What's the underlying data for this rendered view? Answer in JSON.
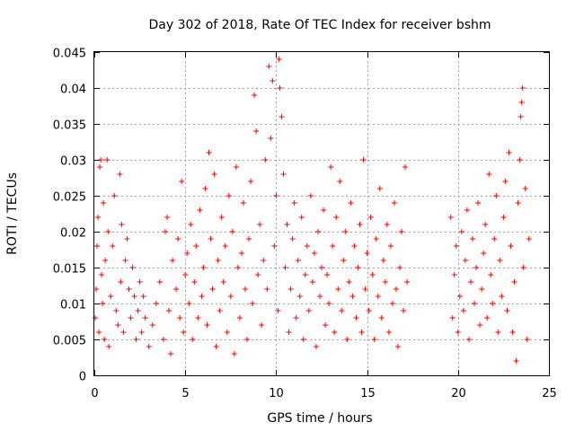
{
  "chart_data": {
    "type": "scatter",
    "title": "Day 302 of 2018, Rate Of TEC Index for receiver bshm",
    "xlabel": "GPS time / hours",
    "ylabel": "ROTI / TECUs",
    "xlim": [
      0,
      25
    ],
    "ylim": [
      0,
      0.045
    ],
    "x_ticks": [
      0,
      5,
      10,
      15,
      20,
      25
    ],
    "x_tick_labels": [
      "0",
      "5",
      "10",
      "15",
      "20",
      "25"
    ],
    "y_ticks": [
      0,
      0.005,
      0.01,
      0.015,
      0.02,
      0.025,
      0.03,
      0.035,
      0.04,
      0.045
    ],
    "y_tick_labels": [
      "0",
      "0.005",
      "0.01",
      "0.015",
      "0.02",
      "0.025",
      "0.03",
      "0.035",
      "0.04",
      "0.045"
    ],
    "grid": true,
    "marker": "+",
    "color": "#ff0000",
    "series": [
      {
        "name": "ROTI",
        "points": [
          [
            0.05,
            0.008
          ],
          [
            0.1,
            0.012
          ],
          [
            0.15,
            0.018
          ],
          [
            0.2,
            0.022
          ],
          [
            0.25,
            0.006
          ],
          [
            0.3,
            0.029
          ],
          [
            0.35,
            0.03
          ],
          [
            0.4,
            0.014
          ],
          [
            0.45,
            0.01
          ],
          [
            0.5,
            0.024
          ],
          [
            0.55,
            0.005
          ],
          [
            0.6,
            0.016
          ],
          [
            0.7,
            0.03
          ],
          [
            0.75,
            0.02
          ],
          [
            0.8,
            0.004
          ],
          [
            0.9,
            0.011
          ],
          [
            1.0,
            0.018
          ],
          [
            1.1,
            0.025
          ],
          [
            1.2,
            0.009
          ],
          [
            1.3,
            0.007
          ],
          [
            1.4,
            0.028
          ],
          [
            1.45,
            0.013
          ],
          [
            1.5,
            0.021
          ],
          [
            1.6,
            0.006
          ],
          [
            1.7,
            0.016
          ],
          [
            1.8,
            0.019
          ],
          [
            1.9,
            0.012
          ],
          [
            2.0,
            0.008
          ],
          [
            2.1,
            0.015
          ],
          [
            2.2,
            0.011
          ],
          [
            2.3,
            0.005
          ],
          [
            2.4,
            0.009
          ],
          [
            2.5,
            0.013
          ],
          [
            2.6,
            0.006
          ],
          [
            2.7,
            0.011
          ],
          [
            2.8,
            0.008
          ],
          [
            3.0,
            0.004
          ],
          [
            3.2,
            0.007
          ],
          [
            3.4,
            0.01
          ],
          [
            3.6,
            0.013
          ],
          [
            3.8,
            0.005
          ],
          [
            3.9,
            0.02
          ],
          [
            4.0,
            0.022
          ],
          [
            4.1,
            0.009
          ],
          [
            4.2,
            0.003
          ],
          [
            4.3,
            0.016
          ],
          [
            4.5,
            0.012
          ],
          [
            4.6,
            0.019
          ],
          [
            4.7,
            0.008
          ],
          [
            4.8,
            0.027
          ],
          [
            4.9,
            0.006
          ],
          [
            5.0,
            0.014
          ],
          [
            5.1,
            0.017
          ],
          [
            5.2,
            0.01
          ],
          [
            5.3,
            0.021
          ],
          [
            5.4,
            0.005
          ],
          [
            5.5,
            0.013
          ],
          [
            5.6,
            0.018
          ],
          [
            5.7,
            0.008
          ],
          [
            5.8,
            0.023
          ],
          [
            5.9,
            0.011
          ],
          [
            6.0,
            0.015
          ],
          [
            6.1,
            0.026
          ],
          [
            6.2,
            0.007
          ],
          [
            6.3,
            0.031
          ],
          [
            6.4,
            0.019
          ],
          [
            6.5,
            0.012
          ],
          [
            6.6,
            0.028
          ],
          [
            6.7,
            0.004
          ],
          [
            6.8,
            0.016
          ],
          [
            6.9,
            0.009
          ],
          [
            7.0,
            0.022
          ],
          [
            7.1,
            0.013
          ],
          [
            7.2,
            0.018
          ],
          [
            7.3,
            0.006
          ],
          [
            7.4,
            0.025
          ],
          [
            7.5,
            0.011
          ],
          [
            7.6,
            0.02
          ],
          [
            7.7,
            0.003
          ],
          [
            7.8,
            0.029
          ],
          [
            7.9,
            0.015
          ],
          [
            8.0,
            0.008
          ],
          [
            8.1,
            0.017
          ],
          [
            8.2,
            0.024
          ],
          [
            8.3,
            0.012
          ],
          [
            8.4,
            0.005
          ],
          [
            8.5,
            0.019
          ],
          [
            8.6,
            0.027
          ],
          [
            8.7,
            0.01
          ],
          [
            8.8,
            0.039
          ],
          [
            8.9,
            0.034
          ],
          [
            9.0,
            0.014
          ],
          [
            9.1,
            0.021
          ],
          [
            9.2,
            0.007
          ],
          [
            9.3,
            0.016
          ],
          [
            9.4,
            0.03
          ],
          [
            9.5,
            0.012
          ],
          [
            9.6,
            0.043
          ],
          [
            9.7,
            0.033
          ],
          [
            9.8,
            0.041
          ],
          [
            9.9,
            0.018
          ],
          [
            10.0,
            0.025
          ],
          [
            10.1,
            0.009
          ],
          [
            10.15,
            0.044
          ],
          [
            10.2,
            0.04
          ],
          [
            10.3,
            0.036
          ],
          [
            10.4,
            0.028
          ],
          [
            10.5,
            0.015
          ],
          [
            10.6,
            0.021
          ],
          [
            10.7,
            0.006
          ],
          [
            10.8,
            0.012
          ],
          [
            10.9,
            0.019
          ],
          [
            11.0,
            0.024
          ],
          [
            11.1,
            0.008
          ],
          [
            11.2,
            0.016
          ],
          [
            11.3,
            0.011
          ],
          [
            11.4,
            0.022
          ],
          [
            11.5,
            0.005
          ],
          [
            11.6,
            0.014
          ],
          [
            11.7,
            0.018
          ],
          [
            11.8,
            0.009
          ],
          [
            11.9,
            0.025
          ],
          [
            12.0,
            0.013
          ],
          [
            12.1,
            0.017
          ],
          [
            12.2,
            0.004
          ],
          [
            12.3,
            0.02
          ],
          [
            12.4,
            0.011
          ],
          [
            12.5,
            0.015
          ],
          [
            12.6,
            0.023
          ],
          [
            12.7,
            0.007
          ],
          [
            12.8,
            0.014
          ],
          [
            12.9,
            0.01
          ],
          [
            13.0,
            0.029
          ],
          [
            13.1,
            0.018
          ],
          [
            13.2,
            0.006
          ],
          [
            13.3,
            0.022
          ],
          [
            13.4,
            0.012
          ],
          [
            13.5,
            0.027
          ],
          [
            13.6,
            0.009
          ],
          [
            13.7,
            0.016
          ],
          [
            13.8,
            0.02
          ],
          [
            13.9,
            0.005
          ],
          [
            14.0,
            0.013
          ],
          [
            14.1,
            0.024
          ],
          [
            14.2,
            0.011
          ],
          [
            14.3,
            0.018
          ],
          [
            14.4,
            0.008
          ],
          [
            14.5,
            0.015
          ],
          [
            14.6,
            0.021
          ],
          [
            14.7,
            0.006
          ],
          [
            14.8,
            0.03
          ],
          [
            14.9,
            0.012
          ],
          [
            15.0,
            0.017
          ],
          [
            15.1,
            0.009
          ],
          [
            15.2,
            0.022
          ],
          [
            15.3,
            0.014
          ],
          [
            15.4,
            0.005
          ],
          [
            15.5,
            0.019
          ],
          [
            15.6,
            0.011
          ],
          [
            15.7,
            0.026
          ],
          [
            15.8,
            0.008
          ],
          [
            15.9,
            0.016
          ],
          [
            16.0,
            0.013
          ],
          [
            16.1,
            0.021
          ],
          [
            16.2,
            0.006
          ],
          [
            16.3,
            0.018
          ],
          [
            16.4,
            0.01
          ],
          [
            16.5,
            0.024
          ],
          [
            16.6,
            0.012
          ],
          [
            16.7,
            0.004
          ],
          [
            16.8,
            0.015
          ],
          [
            16.9,
            0.02
          ],
          [
            17.0,
            0.009
          ],
          [
            17.1,
            0.029
          ],
          [
            17.2,
            0.013
          ],
          [
            19.6,
            0.022
          ],
          [
            19.7,
            0.008
          ],
          [
            19.8,
            0.014
          ],
          [
            19.9,
            0.018
          ],
          [
            20.0,
            0.006
          ],
          [
            20.1,
            0.011
          ],
          [
            20.2,
            0.02
          ],
          [
            20.3,
            0.009
          ],
          [
            20.4,
            0.016
          ],
          [
            20.5,
            0.023
          ],
          [
            20.6,
            0.005
          ],
          [
            20.7,
            0.013
          ],
          [
            20.8,
            0.019
          ],
          [
            20.9,
            0.01
          ],
          [
            21.0,
            0.015
          ],
          [
            21.1,
            0.024
          ],
          [
            21.2,
            0.007
          ],
          [
            21.3,
            0.012
          ],
          [
            21.4,
            0.017
          ],
          [
            21.5,
            0.021
          ],
          [
            21.6,
            0.008
          ],
          [
            21.7,
            0.028
          ],
          [
            21.8,
            0.014
          ],
          [
            21.9,
            0.01
          ],
          [
            22.0,
            0.019
          ],
          [
            22.1,
            0.025
          ],
          [
            22.2,
            0.006
          ],
          [
            22.3,
            0.016
          ],
          [
            22.4,
            0.011
          ],
          [
            22.5,
            0.022
          ],
          [
            22.6,
            0.027
          ],
          [
            22.7,
            0.009
          ],
          [
            22.8,
            0.031
          ],
          [
            22.9,
            0.018
          ],
          [
            23.0,
            0.006
          ],
          [
            23.1,
            0.013
          ],
          [
            23.2,
            0.002
          ],
          [
            23.3,
            0.024
          ],
          [
            23.4,
            0.03
          ],
          [
            23.45,
            0.036
          ],
          [
            23.5,
            0.038
          ],
          [
            23.55,
            0.04
          ],
          [
            23.6,
            0.015
          ],
          [
            23.7,
            0.026
          ],
          [
            23.8,
            0.005
          ],
          [
            23.9,
            0.019
          ]
        ]
      }
    ]
  }
}
